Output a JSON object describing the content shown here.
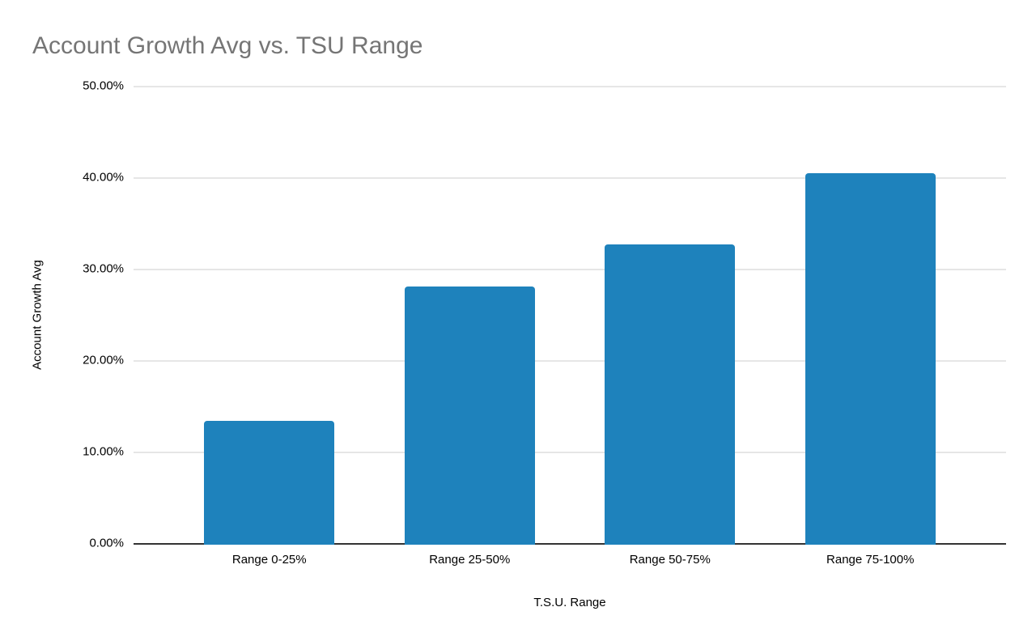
{
  "chart_data": {
    "type": "bar",
    "title": "Account Growth Avg vs. TSU Range",
    "xlabel": "T.S.U. Range",
    "ylabel": "Account Growth Avg",
    "categories": [
      "Range 0-25%",
      "Range 25-50%",
      "Range 50-75%",
      "Range 75-100%"
    ],
    "values": [
      13.5,
      28.2,
      32.8,
      40.6
    ],
    "value_unit": "percent",
    "ylim": [
      0,
      50
    ],
    "ytick_step": 10,
    "ytick_labels": [
      "0.00%",
      "10.00%",
      "20.00%",
      "30.00%",
      "40.00%",
      "50.00%"
    ],
    "grid": true,
    "legend": "none",
    "colors": {
      "bar": "#1e82bc",
      "gridline": "#e6e6e6",
      "axis": "#333333",
      "title": "#757575",
      "tick_label": "#000000",
      "background": "#ffffff"
    }
  }
}
